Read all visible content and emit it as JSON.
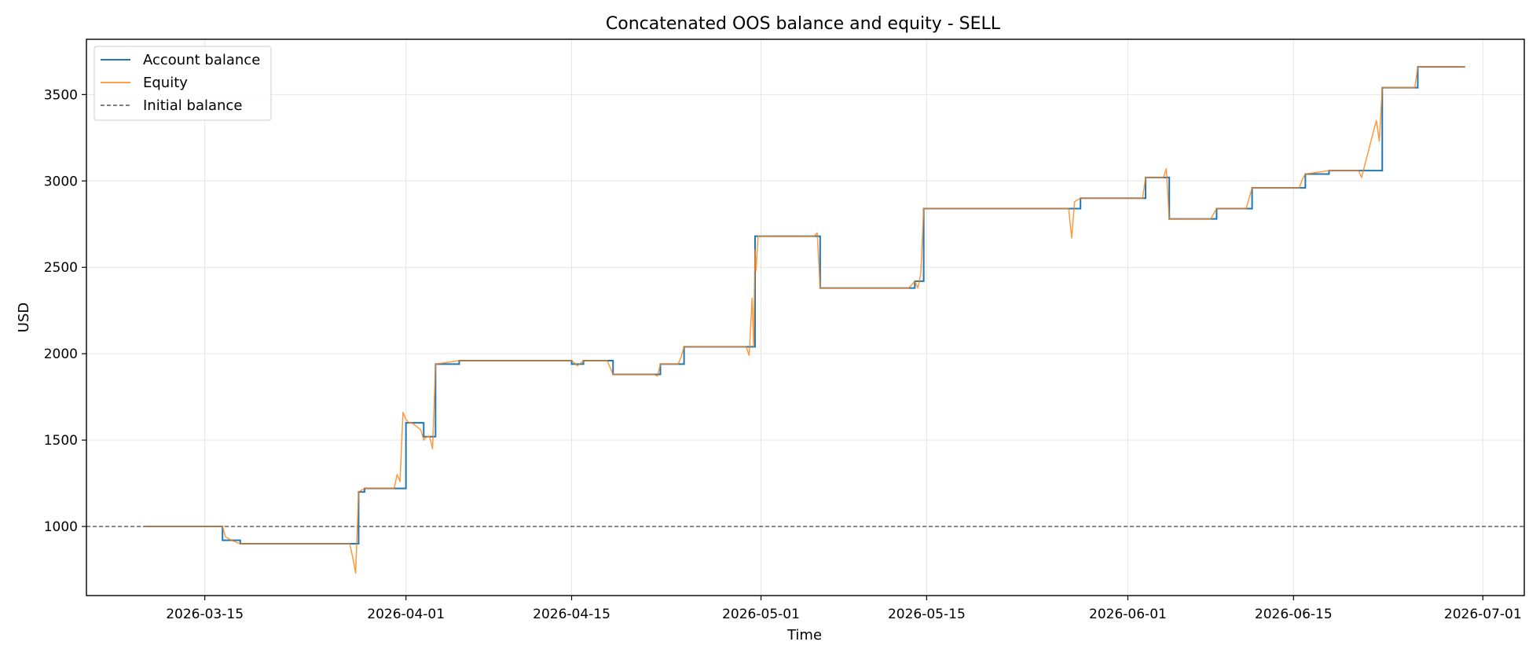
{
  "chart_data": {
    "type": "line",
    "title": "Concatenated OOS balance and equity - SELL",
    "xlabel": "Time",
    "ylabel": "USD",
    "xlim": [
      "2026-03-05T00:00",
      "2026-07-04T12:00"
    ],
    "ylim": [
      600,
      3820
    ],
    "x_ticks": [
      "2026-03-15",
      "2026-04-01",
      "2026-04-15",
      "2026-05-01",
      "2026-05-15",
      "2026-06-01",
      "2026-06-15",
      "2026-07-01"
    ],
    "y_ticks": [
      1000,
      1500,
      2000,
      2500,
      3000,
      3500
    ],
    "grid": true,
    "legend_position": "top-left",
    "colors": {
      "balance": "#1f77b4",
      "equity": "#ff7f0e",
      "initial": "#555555"
    },
    "initial_balance": 1000,
    "series": [
      {
        "name": "Account balance",
        "style": "step",
        "x": [
          "2026-03-10",
          "2026-03-16T12:00",
          "2026-03-17T00:00",
          "2026-03-18T00:00",
          "2026-03-27T12:00",
          "2026-03-28T00:00",
          "2026-03-28T12:00",
          "2026-03-31T12:00",
          "2026-04-01T00:00",
          "2026-04-01T06:00",
          "2026-04-02T12:00",
          "2026-04-03T12:00",
          "2026-04-05T12:00",
          "2026-04-15T00:00",
          "2026-04-16T00:00",
          "2026-04-18T12:00",
          "2026-04-22T12:00",
          "2026-04-24T12:00",
          "2026-04-30T00:00",
          "2026-04-30T12:00",
          "2026-04-30T18:00",
          "2026-05-05T12:00",
          "2026-05-06T00:00",
          "2026-05-13T12:00",
          "2026-05-14T00:00",
          "2026-05-14T18:00",
          "2026-05-27T00:00",
          "2026-05-28T00:00",
          "2026-06-02T12:00",
          "2026-06-04T12:00",
          "2026-06-08T12:00",
          "2026-06-11T12:00",
          "2026-06-15T12:00",
          "2026-06-16T00:00",
          "2026-06-18T00:00",
          "2026-06-20T12:00",
          "2026-06-22T12:00",
          "2026-06-25T12:00",
          "2026-06-29T12:00"
        ],
        "y": [
          1000,
          920,
          920,
          900,
          900,
          1200,
          1220,
          1220,
          1600,
          1600,
          1520,
          1940,
          1960,
          1940,
          1960,
          1880,
          1940,
          2040,
          2040,
          2680,
          2680,
          2680,
          2380,
          2380,
          2420,
          2840,
          2840,
          2900,
          3020,
          2780,
          2840,
          2960,
          2960,
          3040,
          3060,
          3060,
          3540,
          3660,
          3660
        ]
      },
      {
        "name": "Equity",
        "style": "line",
        "x": [
          "2026-03-10",
          "2026-03-16T12:00",
          "2026-03-16T18:00",
          "2026-03-17T06:00",
          "2026-03-18T00:00",
          "2026-03-27T06:00",
          "2026-03-27T12:00",
          "2026-03-27T18:00",
          "2026-03-28T00:00",
          "2026-03-28T12:00",
          "2026-03-31T00:00",
          "2026-03-31T06:00",
          "2026-03-31T12:00",
          "2026-03-31T18:00",
          "2026-04-01T00:00",
          "2026-04-01T06:00",
          "2026-04-01T12:00",
          "2026-04-02T06:00",
          "2026-04-02T12:00",
          "2026-04-02T18:00",
          "2026-04-03T00:00",
          "2026-04-03T06:00",
          "2026-04-03T12:00",
          "2026-04-05T12:00",
          "2026-04-15T00:00",
          "2026-04-15T12:00",
          "2026-04-16T00:00",
          "2026-04-18T00:00",
          "2026-04-18T12:00",
          "2026-04-22T00:00",
          "2026-04-22T06:00",
          "2026-04-22T12:00",
          "2026-04-24T00:00",
          "2026-04-24T06:00",
          "2026-04-24T12:00",
          "2026-04-29T18:00",
          "2026-04-30T00:00",
          "2026-04-30T06:00",
          "2026-04-30T09:00",
          "2026-04-30T12:00",
          "2026-04-30T14:00",
          "2026-04-30T18:00",
          "2026-05-05T12:00",
          "2026-05-05T18:00",
          "2026-05-06T00:00",
          "2026-05-13T12:00",
          "2026-05-14T00:00",
          "2026-05-14T06:00",
          "2026-05-14T12:00",
          "2026-05-14T18:00",
          "2026-05-27T00:00",
          "2026-05-27T06:00",
          "2026-05-27T12:00",
          "2026-05-28T00:00",
          "2026-06-02T06:00",
          "2026-06-02T12:00",
          "2026-06-04T00:00",
          "2026-06-04T06:00",
          "2026-06-04T12:00",
          "2026-06-08T00:00",
          "2026-06-08T12:00",
          "2026-06-11T00:00",
          "2026-06-11T12:00",
          "2026-06-15T12:00",
          "2026-06-15T18:00",
          "2026-06-16T00:00",
          "2026-06-18T00:00",
          "2026-06-20T12:00",
          "2026-06-20T18:00",
          "2026-06-22T00:00",
          "2026-06-22T06:00",
          "2026-06-22T12:00",
          "2026-06-25T06:00",
          "2026-06-25T12:00",
          "2026-06-29T12:00"
        ],
        "y": [
          1000,
          1000,
          940,
          920,
          900,
          900,
          820,
          730,
          1200,
          1220,
          1220,
          1300,
          1260,
          1660,
          1620,
          1600,
          1600,
          1560,
          1500,
          1520,
          1520,
          1450,
          1940,
          1960,
          1960,
          1930,
          1960,
          1960,
          1880,
          1880,
          1870,
          1940,
          1940,
          1980,
          2040,
          2040,
          1990,
          2320,
          2040,
          2600,
          2480,
          2680,
          2680,
          2700,
          2380,
          2380,
          2420,
          2380,
          2460,
          2840,
          2840,
          2670,
          2880,
          2900,
          2900,
          3020,
          3020,
          3070,
          2780,
          2780,
          2840,
          2840,
          2960,
          2960,
          3010,
          3040,
          3060,
          3060,
          3020,
          3350,
          3230,
          3540,
          3540,
          3660,
          3660
        ]
      },
      {
        "name": "Initial balance",
        "style": "hline",
        "value": 1000
      }
    ]
  }
}
